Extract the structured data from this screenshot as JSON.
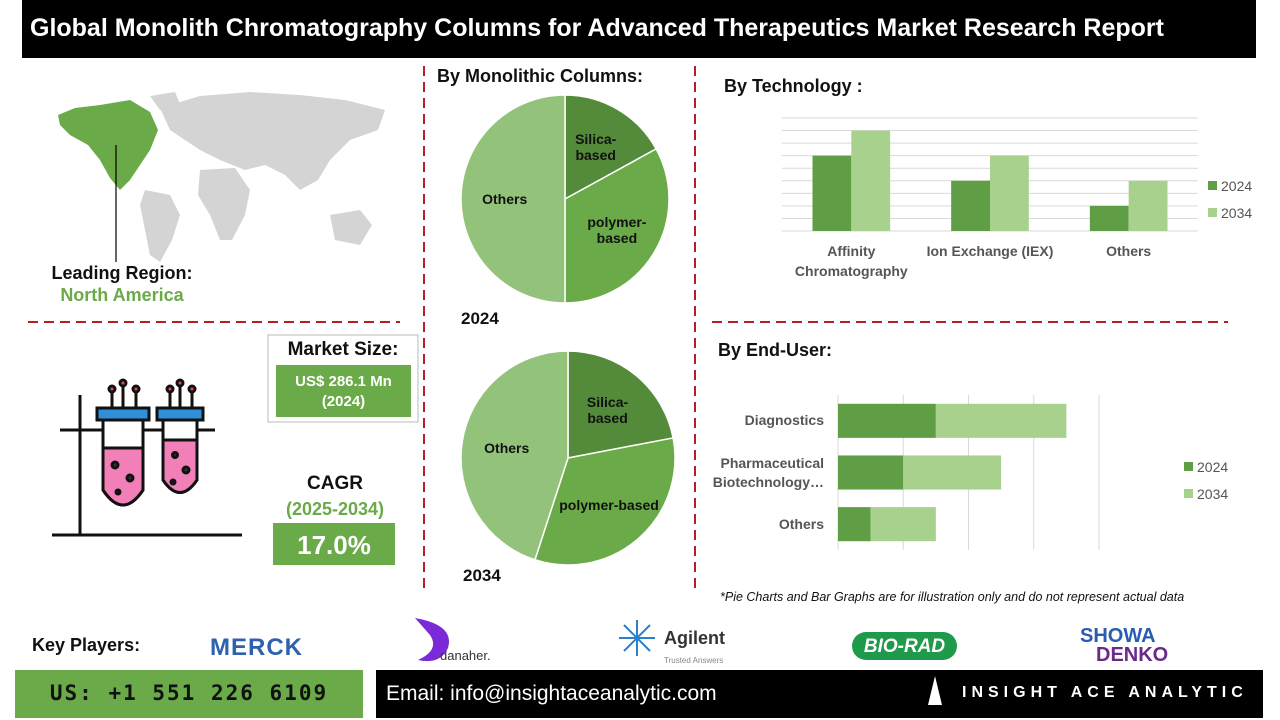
{
  "header": {
    "title": "Global Monolith Chromatography Columns for Advanced Therapeutics Market Research Report"
  },
  "region": {
    "label": "Leading Region:",
    "value": "North America"
  },
  "market_size": {
    "label": "Market Size:",
    "value": "US$ 286.1 Mn (2024)"
  },
  "cagr": {
    "label": "CAGR",
    "period": "(2025-2034)",
    "value": "17.0%"
  },
  "sections": {
    "monolithic": "By Monolithic Columns:",
    "technology": "By  Technology :",
    "end_user": "By End-User:"
  },
  "note": "*Pie Charts and Bar Graphs are for illustration only and do not represent actual data",
  "key_players": {
    "label": "Key Players:",
    "companies": [
      "MERCK",
      "danaher.",
      "Agilent",
      "Trusted Answers",
      "BIO-RAD",
      "SHOWA",
      "DENKO"
    ]
  },
  "footer": {
    "phone": "US: +1 551 226 6109",
    "email": "Email: info@insightaceanalytic.com",
    "brand": "INSIGHT ACE ANALYTIC"
  },
  "chart_data": [
    {
      "type": "pie",
      "title": "2024",
      "categories": [
        "Silica-based",
        "polymer-based",
        "Others"
      ],
      "values": [
        17,
        33,
        50
      ],
      "colors": [
        "#548b3a",
        "#6aaa48",
        "#93c27a"
      ]
    },
    {
      "type": "pie",
      "title": "2034",
      "categories": [
        "Silica-based",
        "polymer-based",
        "Others"
      ],
      "values": [
        22,
        33,
        45
      ],
      "colors": [
        "#548b3a",
        "#6aaa48",
        "#93c27a"
      ]
    },
    {
      "type": "bar",
      "categories": [
        "Affinity Chromatography",
        "Ion Exchange (IEX)",
        "Others"
      ],
      "series": [
        {
          "name": "2024",
          "color": "#5f9e45",
          "values": [
            6,
            4,
            2
          ]
        },
        {
          "name": "2034",
          "color": "#a9d18e",
          "values": [
            8,
            6,
            4
          ]
        }
      ],
      "ylim": [
        0,
        9
      ],
      "yticks": [
        0,
        1,
        2,
        3,
        4,
        5,
        6,
        7,
        8,
        9
      ],
      "grid": true,
      "legend": "right"
    },
    {
      "type": "barh",
      "stacked": true,
      "categories": [
        "Diagnostics",
        "Pharmaceutical Biotechnology…",
        "Others"
      ],
      "series": [
        {
          "name": "2024",
          "color": "#5f9e45",
          "values": [
            1.5,
            1,
            0.5
          ]
        },
        {
          "name": "2034",
          "color": "#a9d18e",
          "values": [
            2,
            1.5,
            1
          ]
        }
      ],
      "xlim": [
        0,
        4
      ],
      "xticks": [
        0,
        1,
        2,
        3,
        4
      ],
      "grid": true,
      "legend": "right"
    }
  ]
}
